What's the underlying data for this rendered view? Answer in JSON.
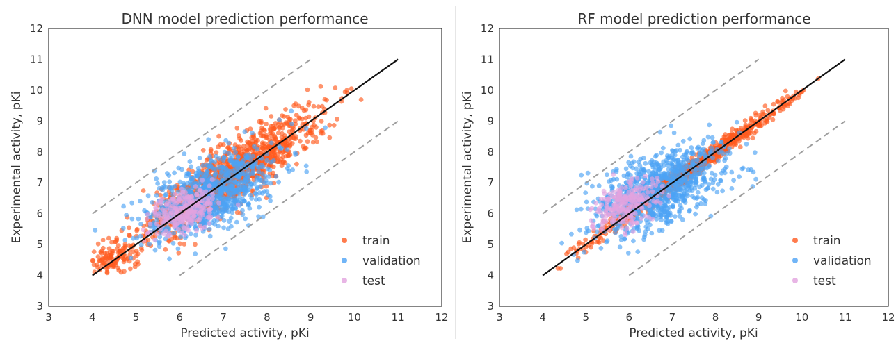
{
  "chart_data": [
    {
      "type": "scatter",
      "title": "DNN model prediction performance",
      "xlabel": "Predicted activity, pKi",
      "ylabel": "Experimental activity, pKi",
      "xlim": [
        3,
        12
      ],
      "ylim": [
        3,
        12
      ],
      "x_ticks": [
        "3",
        "4",
        "5",
        "6",
        "7",
        "8",
        "9",
        "10",
        "11",
        "12"
      ],
      "y_ticks": [
        "3",
        "4",
        "5",
        "6",
        "7",
        "8",
        "9",
        "10",
        "11",
        "12"
      ],
      "grid": false,
      "legend_position": "lower-right",
      "identity_line": {
        "from": [
          4,
          4
        ],
        "to": [
          11,
          11
        ],
        "color": "#111111"
      },
      "band_lines": [
        {
          "from": [
            4,
            6
          ],
          "to": [
            9,
            11
          ],
          "color": "#9e9e9e",
          "style": "dashed"
        },
        {
          "from": [
            6,
            4
          ],
          "to": [
            11,
            9
          ],
          "color": "#9e9e9e",
          "style": "dashed"
        }
      ],
      "series": [
        {
          "name": "train",
          "color": "#ff5a1f",
          "clusters": [
            {
              "cx": 7.2,
              "cy": 7.3,
              "spread_along": 1.4,
              "spread_across": 0.35,
              "min": 4.0,
              "max": 10.2,
              "count": 1100
            },
            {
              "cx": 4.5,
              "cy": 4.6,
              "spread_along": 0.35,
              "spread_across": 0.25,
              "min": 4.0,
              "max": 5.6,
              "count": 120
            }
          ]
        },
        {
          "name": "validation",
          "color": "#4da3f5",
          "clusters": [
            {
              "cx": 6.7,
              "cy": 6.6,
              "spread_along": 0.9,
              "spread_across": 0.45,
              "min": 4.0,
              "max": 9.5,
              "count": 900
            }
          ]
        },
        {
          "name": "test",
          "color": "#e2a3df",
          "clusters": [
            {
              "cx": 6.1,
              "cy": 6.1,
              "spread_along": 0.5,
              "spread_across": 0.3,
              "min": 5.1,
              "max": 8.1,
              "count": 260
            }
          ]
        }
      ]
    },
    {
      "type": "scatter",
      "title": "RF model prediction performance",
      "xlabel": "Predicted activity, pKi",
      "ylabel": "Experimental activity, pKi",
      "xlim": [
        3,
        12
      ],
      "ylim": [
        3,
        12
      ],
      "x_ticks": [
        "3",
        "4",
        "5",
        "6",
        "7",
        "8",
        "9",
        "10",
        "11",
        "12"
      ],
      "y_ticks": [
        "3",
        "4",
        "5",
        "6",
        "7",
        "8",
        "9",
        "10",
        "11",
        "12"
      ],
      "grid": false,
      "legend_position": "lower-right",
      "identity_line": {
        "from": [
          4,
          4
        ],
        "to": [
          11,
          11
        ],
        "color": "#111111"
      },
      "band_lines": [
        {
          "from": [
            4,
            6
          ],
          "to": [
            9,
            11
          ],
          "color": "#9e9e9e",
          "style": "dashed"
        },
        {
          "from": [
            6,
            4
          ],
          "to": [
            11,
            9
          ],
          "color": "#9e9e9e",
          "style": "dashed"
        }
      ],
      "series": [
        {
          "name": "train",
          "color": "#ff5a1f",
          "clusters": [
            {
              "cx": 7.3,
              "cy": 7.3,
              "spread_along": 1.5,
              "spread_across": 0.1,
              "min": 4.2,
              "max": 10.4,
              "count": 1000
            }
          ]
        },
        {
          "name": "validation",
          "color": "#4da3f5",
          "clusters": [
            {
              "cx": 6.7,
              "cy": 6.8,
              "spread_along": 0.9,
              "spread_across": 0.5,
              "min": 4.1,
              "max": 10.2,
              "count": 900
            }
          ]
        },
        {
          "name": "test",
          "color": "#e2a3df",
          "clusters": [
            {
              "cx": 5.9,
              "cy": 6.3,
              "spread_along": 0.5,
              "spread_across": 0.3,
              "min": 5.1,
              "max": 8.7,
              "count": 240
            }
          ]
        }
      ]
    }
  ]
}
